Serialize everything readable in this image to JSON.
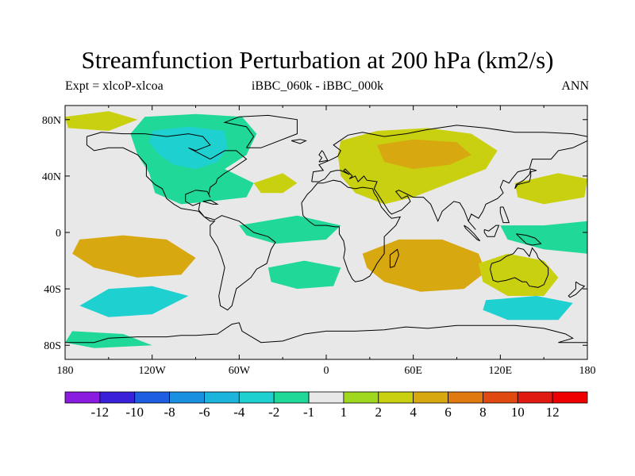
{
  "title": "Streamfunction Perturbation at 200 hPa (km2/s)",
  "left_string": "Expt = xlcoP-xlcoa",
  "center_string": "iBBC_060k - iBBC_000k",
  "right_string": "ANN",
  "map": {
    "projection": "cylindrical-equidistant",
    "lon_range": [
      -180,
      180
    ],
    "lat_range": [
      -90,
      90
    ],
    "lon_ticks": [
      -180,
      -120,
      -60,
      0,
      60,
      120,
      180
    ],
    "lon_tick_labels": [
      "180",
      "120W",
      "60W",
      "0",
      "60E",
      "120E",
      "180"
    ],
    "lat_ticks": [
      80,
      40,
      0,
      -40,
      -80
    ],
    "lat_tick_labels": [
      "80N",
      "40N",
      "0",
      "40S",
      "80S"
    ],
    "background_color": "#e8e8e8",
    "coastline_color": "#000000"
  },
  "colorbar": {
    "labels": [
      "-12",
      "-10",
      "-8",
      "-6",
      "-4",
      "-2",
      "-1",
      "1",
      "2",
      "4",
      "6",
      "8",
      "10",
      "12"
    ],
    "colors": [
      "#8a1ce0",
      "#3a20d8",
      "#1e5ee0",
      "#1a90e0",
      "#1cb4dc",
      "#1ed0d0",
      "#20d898",
      "#e8e8e8",
      "#a0d820",
      "#c8d010",
      "#d8a810",
      "#e07a10",
      "#e04a10",
      "#e01a10",
      "#ee0000"
    ]
  },
  "contour_regions": [
    {
      "name": "north-america-negative",
      "level": "-2"
    },
    {
      "name": "north-america-core",
      "level": "-4"
    },
    {
      "name": "eurasia-positive",
      "level": "2"
    },
    {
      "name": "eurasia-core",
      "level": "4"
    },
    {
      "name": "south-pacific-positive",
      "level": "4"
    },
    {
      "name": "indian-ocean-positive",
      "level": "4"
    },
    {
      "name": "australia-positive",
      "level": "2"
    },
    {
      "name": "southern-ocean-negative",
      "level": "-4"
    }
  ]
}
